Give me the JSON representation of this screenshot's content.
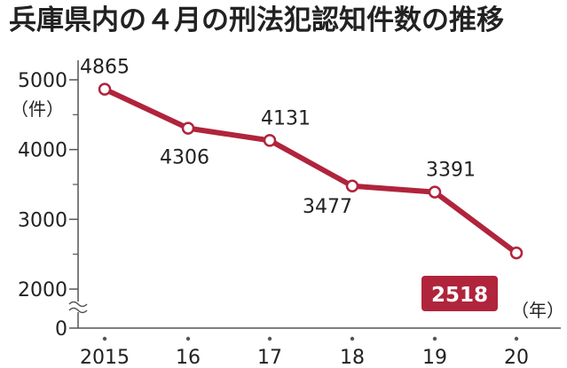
{
  "chart_data": {
    "type": "line",
    "title": "兵庫県内の４月の刑法犯認知件数の推移",
    "ylabel": "（件）",
    "xlabel": "（年）",
    "categories": [
      "2015",
      "16",
      "17",
      "18",
      "19",
      "20"
    ],
    "values": [
      4865,
      4306,
      4131,
      3477,
      3391,
      2518
    ],
    "yticks": [
      0,
      2000,
      3000,
      4000,
      5000
    ],
    "ylim": [
      2000,
      5000
    ],
    "axis_break": true,
    "highlight_last": true,
    "line_color": "#b0243c",
    "highlight_bg": "#b0243c",
    "axis_color": "#555555"
  }
}
